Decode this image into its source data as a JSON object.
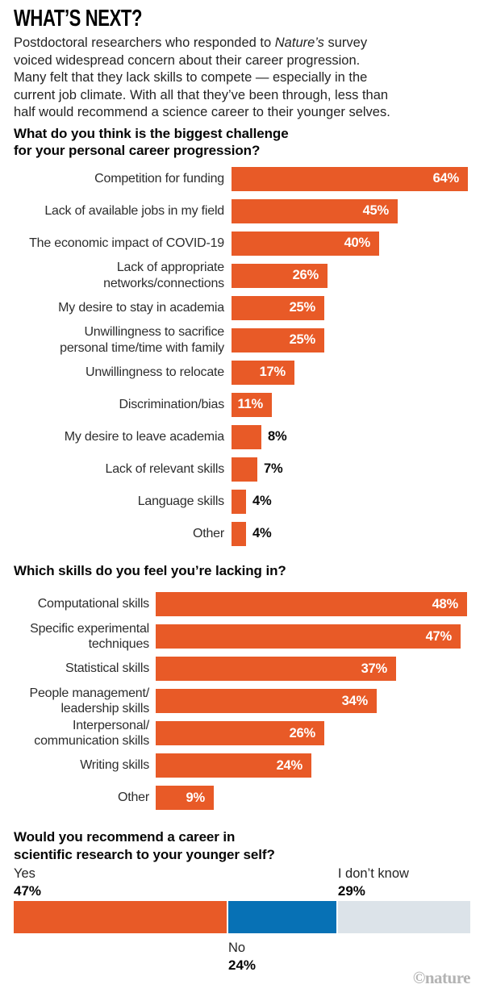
{
  "header": {
    "title": "WHAT’S NEXT?",
    "intro_lines": [
      {
        "parts": [
          {
            "t": "Postdoctoral researchers who responded to "
          },
          {
            "t": "Nature’s",
            "i": true
          },
          {
            "t": " survey"
          }
        ]
      },
      {
        "parts": [
          {
            "t": "voiced widespread concern about their career progression."
          }
        ]
      },
      {
        "parts": [
          {
            "t": "Many felt that they lack skills to compete — especially in the"
          }
        ]
      },
      {
        "parts": [
          {
            "t": "current job climate. With all that they’ve been through, less than"
          }
        ]
      },
      {
        "parts": [
          {
            "t": "half would recommend a science career to their younger selves."
          }
        ]
      }
    ]
  },
  "colors": {
    "orange": "#E85A27",
    "blue": "#0771B5",
    "gray": "#DCE3E9"
  },
  "chart_data": [
    {
      "type": "bar",
      "orientation": "horizontal",
      "title": "What do you think is the biggest challenge for your personal career progression?",
      "title_lines": [
        "What do you think is the biggest challenge",
        "for your personal career progression?"
      ],
      "categories": [
        "Competition for funding",
        "Lack of available jobs in my field",
        "The economic impact of COVID-19",
        "Lack of appropriate\nnetworks/connections",
        "My desire to stay in academia",
        "Unwillingness to sacrifice\npersonal time/time with family",
        "Unwillingness to relocate",
        "Discrimination/bias",
        "My desire to leave academia",
        "Lack of relevant skills",
        "Language skills",
        "Other"
      ],
      "values": [
        64,
        45,
        40,
        26,
        25,
        25,
        17,
        11,
        8,
        7,
        4,
        4
      ],
      "unit": "%",
      "bar_color": "#E85A27",
      "label_inside_min": 10,
      "xlim": [
        0,
        64
      ],
      "grid": false,
      "legend": false
    },
    {
      "type": "bar",
      "orientation": "horizontal",
      "title": "Which skills do you feel you’re lacking in?",
      "title_lines": [
        "Which skills do you feel you’re lacking in?"
      ],
      "categories": [
        "Computational skills",
        "Specific experimental\ntechniques",
        "Statistical skills",
        "People management/\nleadership skills",
        "Interpersonal/\ncommunication skills",
        "Writing skills",
        "Other"
      ],
      "values": [
        48,
        47,
        37,
        34,
        26,
        24,
        9
      ],
      "unit": "%",
      "bar_color": "#E85A27",
      "label_inside_min": 9,
      "xlim": [
        0,
        48
      ],
      "grid": false,
      "legend": false
    },
    {
      "type": "stacked-bar",
      "orientation": "horizontal",
      "title": "Would you recommend a career in scientific research to your younger self?",
      "title_lines": [
        "Would you recommend a career in",
        "scientific research to your younger self?"
      ],
      "total": 100,
      "unit": "%",
      "segments": [
        {
          "label": "Yes",
          "value": 47,
          "color": "#E85A27",
          "label_pos": "above"
        },
        {
          "label": "No",
          "value": 24,
          "color": "#0771B5",
          "label_pos": "below"
        },
        {
          "label": "I don’t know",
          "value": 29,
          "color": "#DCE3E9",
          "label_pos": "above"
        }
      ]
    }
  ],
  "footer": {
    "credit": "©nature"
  }
}
